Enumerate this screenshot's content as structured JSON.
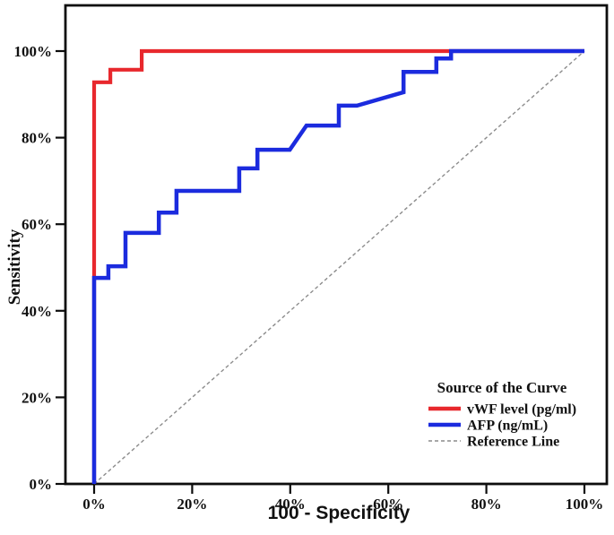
{
  "figure": {
    "background": "#ffffff",
    "frame_color": "#0d0d0d"
  },
  "chart_data": {
    "type": "line",
    "subtype": "roc-curve",
    "title": "",
    "xlabel": "100 - Specificity",
    "ylabel": "Sensitivity",
    "xlim": [
      0,
      100
    ],
    "ylim": [
      0,
      100
    ],
    "grid": false,
    "x_ticks": [
      "0%",
      "20%",
      "40%",
      "60%",
      "80%",
      "100%"
    ],
    "x_tick_values": [
      0,
      20,
      40,
      60,
      80,
      100
    ],
    "y_ticks": [
      "0%",
      "20%",
      "40%",
      "60%",
      "80%",
      "100%"
    ],
    "y_tick_values": [
      0,
      20,
      40,
      60,
      80,
      100
    ],
    "legend": {
      "title": "Source of the Curve",
      "position": "lower right",
      "entries": [
        {
          "label": "vWF level (pg/ml)",
          "color": "#e8282d",
          "style": "solid"
        },
        {
          "label": "AFP (ng/mL)",
          "color": "#1b2bde",
          "style": "solid"
        },
        {
          "label": "Reference Line",
          "color": "#8c8c8c",
          "style": "dashed"
        }
      ]
    },
    "series": [
      {
        "id": "reference-line",
        "name": "Reference Line",
        "color": "#8c8c8c",
        "style": "dashed",
        "width": 1.4,
        "points": [
          [
            0,
            0
          ],
          [
            100,
            100
          ]
        ]
      },
      {
        "id": "curve-vwf",
        "name": "vWF level (pg/ml)",
        "color": "#e8282d",
        "style": "solid",
        "width": 4.2,
        "points": [
          [
            0,
            0
          ],
          [
            0,
            92.8
          ],
          [
            3.3,
            92.8
          ],
          [
            3.3,
            95.7
          ],
          [
            9.7,
            95.7
          ],
          [
            9.7,
            100
          ],
          [
            100,
            100
          ]
        ]
      },
      {
        "id": "curve-afp",
        "name": "AFP (ng/mL)",
        "color": "#1b2bde",
        "style": "solid",
        "width": 4.5,
        "points": [
          [
            0,
            0
          ],
          [
            0,
            47.6
          ],
          [
            2.9,
            47.6
          ],
          [
            2.9,
            50.3
          ],
          [
            6.4,
            50.3
          ],
          [
            6.4,
            58.0
          ],
          [
            13.2,
            58.0
          ],
          [
            13.2,
            62.7
          ],
          [
            16.8,
            62.7
          ],
          [
            16.8,
            67.7
          ],
          [
            29.6,
            67.7
          ],
          [
            29.6,
            72.9
          ],
          [
            33.3,
            72.9
          ],
          [
            33.3,
            77.2
          ],
          [
            39.9,
            77.2
          ],
          [
            43.3,
            82.8
          ],
          [
            49.9,
            82.8
          ],
          [
            49.9,
            87.4
          ],
          [
            53.6,
            87.4
          ],
          [
            63.1,
            90.5
          ],
          [
            63.1,
            95.2
          ],
          [
            69.8,
            95.2
          ],
          [
            69.8,
            98.3
          ],
          [
            72.8,
            98.3
          ],
          [
            72.8,
            100
          ],
          [
            100,
            100
          ]
        ]
      }
    ]
  }
}
